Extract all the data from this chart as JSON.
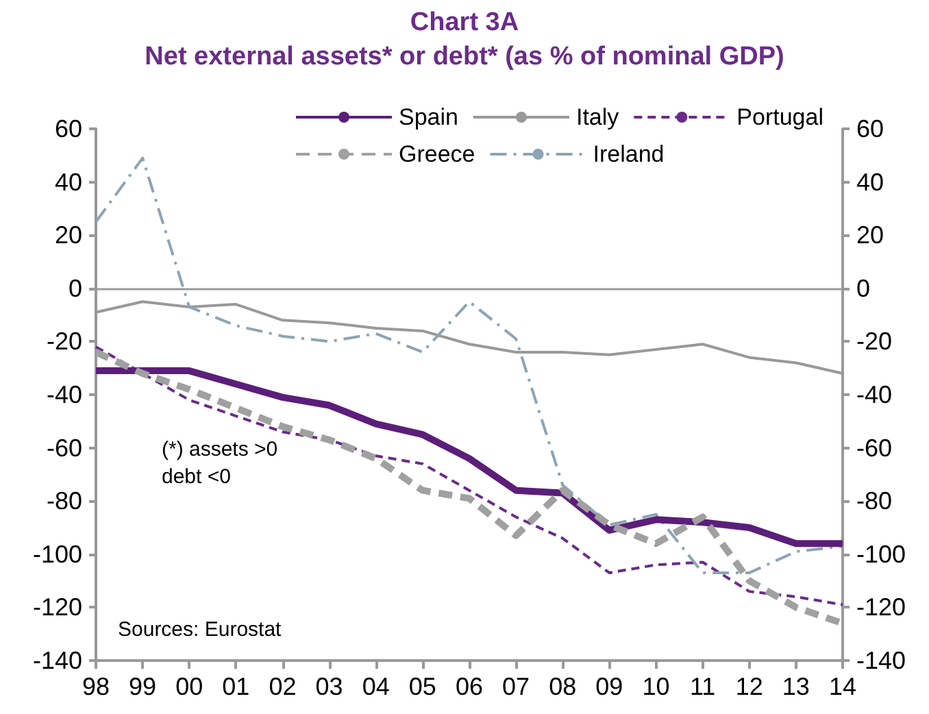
{
  "chart_data": {
    "type": "line",
    "title": "Chart 3A",
    "subtitle": "Net external assets* or debt* (as % of nominal GDP)",
    "categories": [
      "98",
      "99",
      "00",
      "01",
      "02",
      "03",
      "04",
      "05",
      "06",
      "07",
      "08",
      "09",
      "10",
      "11",
      "12",
      "13",
      "14"
    ],
    "series": [
      {
        "name": "Spain",
        "color": "#5b1e7a",
        "line_style": "solid",
        "values": [
          -31,
          -31,
          -31,
          -36,
          -41,
          -44,
          -51,
          -55,
          -64,
          -76,
          -77,
          -91,
          -87,
          -88,
          -90,
          -96,
          -96
        ]
      },
      {
        "name": "Italy",
        "color": "#999999",
        "line_style": "solid",
        "values": [
          -9,
          -5,
          -7,
          -6,
          -12,
          -13,
          -15,
          -16,
          -21,
          -24,
          -24,
          -25,
          -23,
          -21,
          -26,
          -28,
          -32
        ]
      },
      {
        "name": "Portugal",
        "color": "#6a2a8a",
        "line_style": "dashed",
        "values": [
          -22,
          -32,
          -42,
          -48,
          -54,
          -57,
          -63,
          -66,
          -76,
          -86,
          -94,
          -107,
          -104,
          -103,
          -114,
          -116,
          -119
        ]
      },
      {
        "name": "Greece",
        "color": "#a0a0a0",
        "line_style": "dashed",
        "values": [
          -24,
          -32,
          -38,
          -45,
          -52,
          -57,
          -64,
          -76,
          -79,
          -93,
          -76,
          -89,
          -96,
          -86,
          -110,
          -120,
          -126
        ]
      },
      {
        "name": "Ireland",
        "color": "#8ca4b4",
        "line_style": "dashdot",
        "values": [
          25,
          49,
          -7,
          -14,
          -18,
          -20,
          -17,
          -24,
          -5,
          -19,
          -74,
          -89,
          -85,
          -107,
          -107,
          -99,
          -97
        ]
      }
    ],
    "ylim": [
      -140,
      60
    ],
    "yticks": [
      -140,
      -120,
      -100,
      -80,
      -60,
      -40,
      -20,
      0,
      20,
      40,
      60
    ],
    "y2lim": [
      -140,
      60
    ],
    "y2ticks": [
      -140,
      -120,
      -100,
      -80,
      -60,
      -40,
      -20,
      0,
      20,
      40,
      60
    ],
    "ref_lines": [
      {
        "axis": "y",
        "value": 0,
        "color": "#999999"
      }
    ],
    "annotations": [
      "(*) assets >0\ndebt <0",
      "Sources: Eurostat"
    ],
    "grid": false,
    "legend": "top",
    "marker": "none"
  }
}
